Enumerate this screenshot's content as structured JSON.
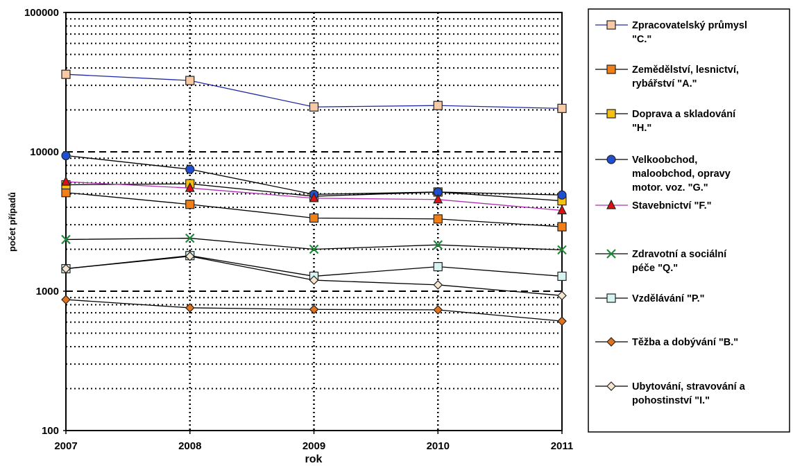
{
  "chart_data": {
    "type": "line",
    "xlabel": "rok",
    "ylabel": "počet případů",
    "y_scale": "log",
    "ylim": [
      100,
      100000
    ],
    "y_ticks": [
      "100",
      "1000",
      "10000",
      "100000"
    ],
    "categories": [
      "2007",
      "2008",
      "2009",
      "2010",
      "2011"
    ],
    "grid": "dotted; dashed at decades",
    "legend_position": "right",
    "series": [
      {
        "name": "Zpracovatelský průmysl \"C.\"",
        "legend_lines": [
          "Zpracovatelský průmysl",
          "\"C.\""
        ],
        "marker": "square",
        "marker_color": "#f7c9a4",
        "line_color": "#1f2aa0",
        "values": [
          36000,
          32500,
          21000,
          21500,
          20500
        ]
      },
      {
        "name": "Zemědělství, lesnictví, rybářství \"A.\"",
        "legend_lines": [
          "Zemědělství, lesnictví,",
          "rybářství \"A.\""
        ],
        "marker": "square",
        "marker_color": "#ef7f16",
        "line_color": "#000000",
        "values": [
          5100,
          4200,
          3350,
          3300,
          2900
        ]
      },
      {
        "name": "Doprava a skladování \"H.\"",
        "legend_lines": [
          "Doprava a skladování",
          "\"H.\""
        ],
        "marker": "square",
        "marker_color": "#f6c012",
        "line_color": "#000000",
        "values": [
          5800,
          5900,
          4800,
          5150,
          4450
        ]
      },
      {
        "name": "Velkoobchod, maloobchod, opravy motor. voz. \"G.\"",
        "legend_lines": [
          "Velkoobchod,",
          "maloobchod, opravy",
          "motor. voz. \"G.\""
        ],
        "marker": "circle",
        "marker_color": "#1f4fd0",
        "line_color": "#000000",
        "values": [
          9400,
          7500,
          4950,
          5150,
          4900
        ]
      },
      {
        "name": "Stavebnictví \"F.\"",
        "legend_lines": [
          "Stavebnictví \"F.\""
        ],
        "marker": "triangle",
        "marker_color": "#e01010",
        "line_color": "#b030b0",
        "values": [
          6100,
          5500,
          4650,
          4550,
          3800
        ]
      },
      {
        "name": "Zdravotní a sociální péče \"Q.\"",
        "legend_lines": [
          "Zdravotní a sociální",
          "péče \"Q.\""
        ],
        "marker": "x",
        "marker_color": "#1f8a3a",
        "line_color": "#000000",
        "values": [
          2350,
          2400,
          2000,
          2150,
          1980
        ]
      },
      {
        "name": "Vzdělávání \"P.\"",
        "legend_lines": [
          "Vzdělávání \"P.\""
        ],
        "marker": "square",
        "marker_color": "#d5f4f2",
        "line_color": "#000000",
        "values": [
          1450,
          1800,
          1280,
          1500,
          1280
        ]
      },
      {
        "name": "Těžba a dobývání \"B.\"",
        "legend_lines": [
          "Těžba a dobývání \"B.\""
        ],
        "marker": "diamond",
        "marker_color": "#e3741c",
        "line_color": "#000000",
        "values": [
          870,
          760,
          740,
          735,
          610
        ]
      },
      {
        "name": "Ubytování, stravování a pohostinství \"I.\"",
        "legend_lines": [
          "Ubytování, stravování a",
          "pohostinství \"I.\""
        ],
        "marker": "diamond",
        "marker_color": "#f6e6cf",
        "line_color": "#000000",
        "values": [
          1450,
          1780,
          1200,
          1110,
          930
        ]
      }
    ]
  }
}
